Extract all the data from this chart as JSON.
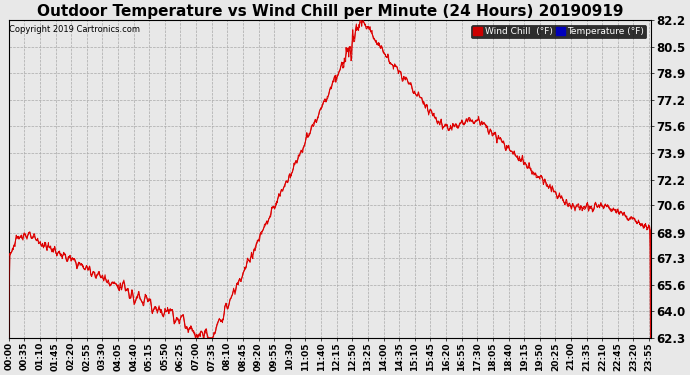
{
  "title": "Outdoor Temperature vs Wind Chill per Minute (24 Hours) 20190919",
  "copyright": "Copyright 2019 Cartronics.com",
  "yticks": [
    62.3,
    64.0,
    65.6,
    67.3,
    68.9,
    70.6,
    72.2,
    73.9,
    75.6,
    77.2,
    78.9,
    80.5,
    82.2
  ],
  "ymin": 62.3,
  "ymax": 82.2,
  "bg_color": "#e8e8e8",
  "plot_bg_color": "#e8e8e8",
  "grid_color": "#aaaaaa",
  "temp_color": "#dd0000",
  "wc_color": "#dd0000",
  "legend_wc_bg": "#cc0000",
  "legend_temp_bg": "#0000bb",
  "title_fontsize": 11,
  "xlabel_fontsize": 6.5,
  "ylabel_fontsize": 8.5,
  "n_minutes": 1440
}
